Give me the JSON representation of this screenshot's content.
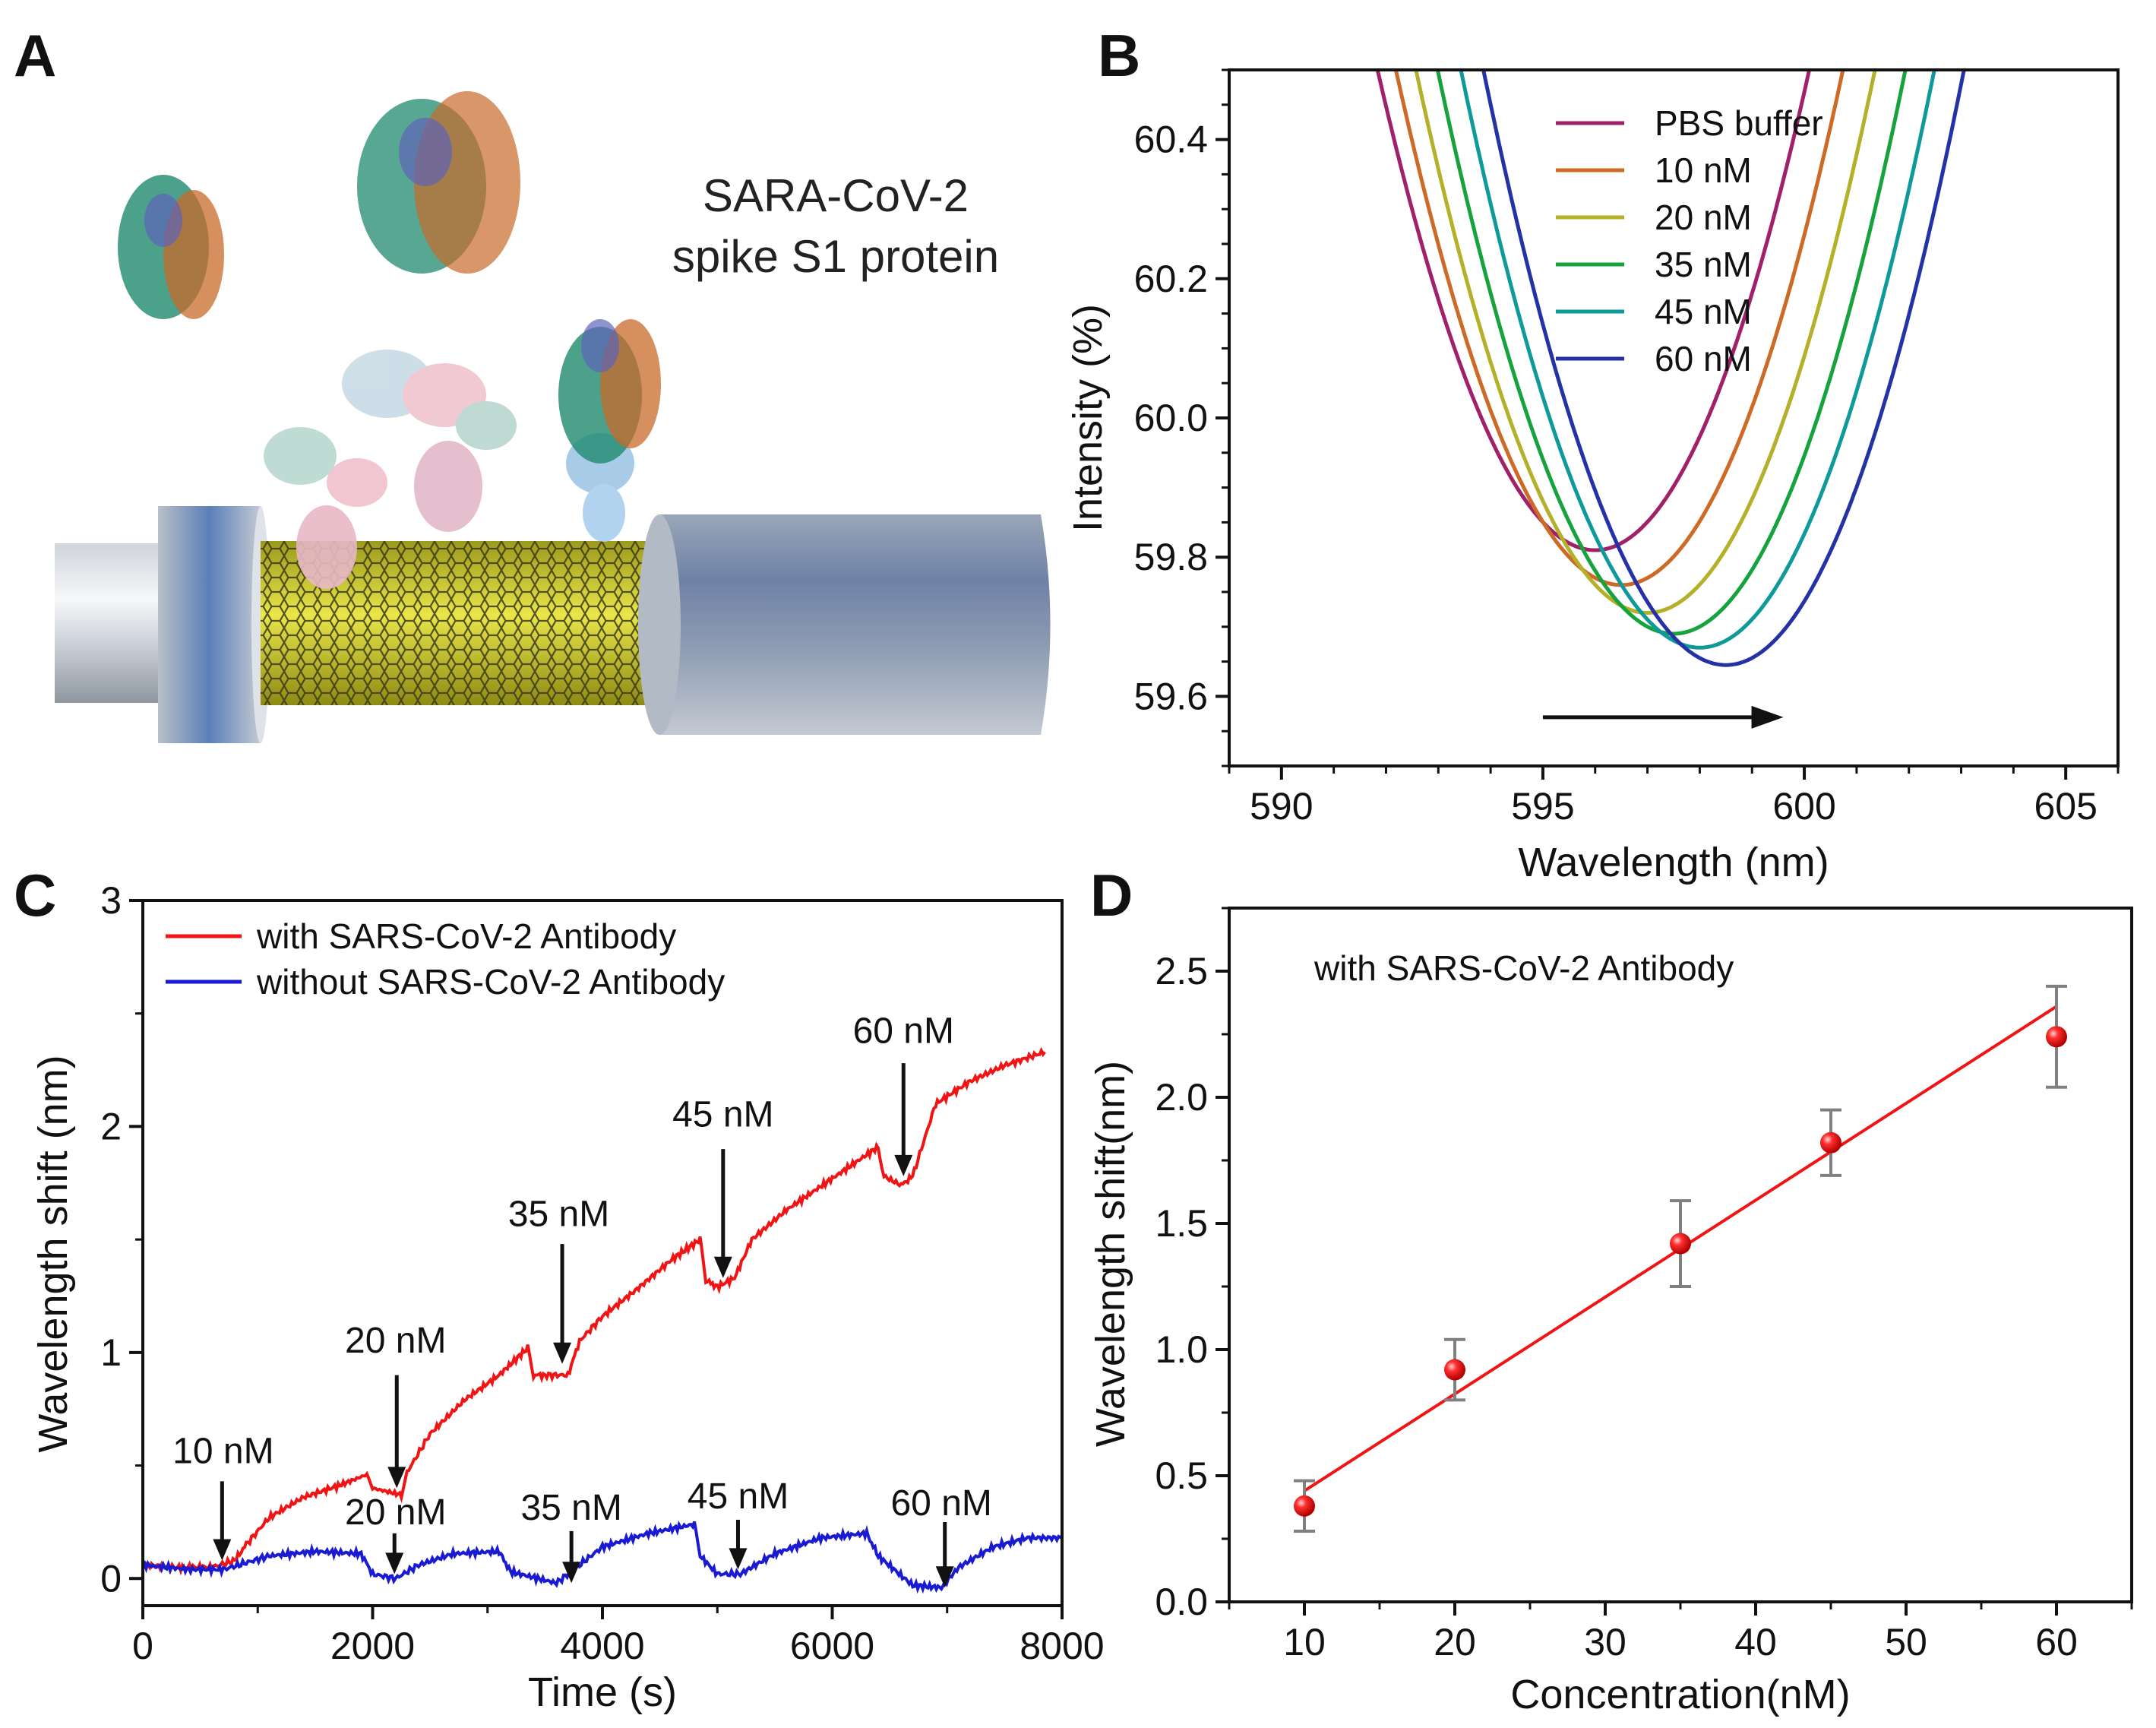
{
  "panel_a": {
    "letter": "A",
    "caption_line1": "SARA-CoV-2",
    "caption_line2": "spike S1 protein"
  },
  "chart_data": [
    {
      "panel": "B",
      "type": "line",
      "title": "",
      "xlabel": "Wavelength (nm)",
      "ylabel": "Intensity (%)",
      "xlim": [
        589,
        606
      ],
      "ylim": [
        59.5,
        60.5
      ],
      "xticks": [
        590,
        595,
        600,
        605
      ],
      "yticks": [
        59.6,
        59.8,
        60.0,
        60.2,
        60.4
      ],
      "legend": "top-center",
      "curves": [
        {
          "name": "PBS buffer",
          "color": "#a0206a",
          "min_x": 596.0,
          "min_y": 59.81
        },
        {
          "name": "10 nM",
          "color": "#cc6a26",
          "min_x": 596.5,
          "min_y": 59.76
        },
        {
          "name": "20 nM",
          "color": "#b4b02a",
          "min_x": 597.0,
          "min_y": 59.72
        },
        {
          "name": "35 nM",
          "color": "#16a23c",
          "min_x": 597.5,
          "min_y": 59.69
        },
        {
          "name": "45 nM",
          "color": "#0e9a9a",
          "min_x": 598.0,
          "min_y": 59.67
        },
        {
          "name": "60 nM",
          "color": "#2432a6",
          "min_x": 598.5,
          "min_y": 59.645
        }
      ],
      "arrow": {
        "x_start": 595.0,
        "x_end": 599.6,
        "y": 59.57
      }
    },
    {
      "panel": "C",
      "type": "line",
      "title": "",
      "xlabel": "Time (s)",
      "ylabel": "Wavelength shift (nm)",
      "xlim": [
        0,
        8000
      ],
      "ylim": [
        -0.12,
        3.0
      ],
      "xticks": [
        0,
        2000,
        4000,
        6000,
        8000
      ],
      "yticks": [
        0,
        1,
        2,
        3
      ],
      "legend": "top-left",
      "series": [
        {
          "name": "with SARS-CoV-2 Antibody",
          "color": "#f01414",
          "x": [
            0,
            300,
            600,
            800,
            900,
            1100,
            1400,
            1700,
            1950,
            2000,
            2250,
            2300,
            2500,
            2800,
            3100,
            3350,
            3400,
            3500,
            3700,
            3800,
            4000,
            4300,
            4600,
            4850,
            4900,
            5000,
            5150,
            5300,
            5600,
            6000,
            6400,
            6450,
            6600,
            6700,
            6900,
            7200,
            7500,
            7850
          ],
          "y": [
            0.06,
            0.05,
            0.05,
            0.08,
            0.15,
            0.27,
            0.36,
            0.41,
            0.46,
            0.4,
            0.37,
            0.47,
            0.64,
            0.79,
            0.9,
            1.02,
            0.9,
            0.9,
            0.9,
            1.05,
            1.16,
            1.28,
            1.41,
            1.5,
            1.32,
            1.29,
            1.33,
            1.5,
            1.63,
            1.77,
            1.91,
            1.78,
            1.74,
            1.78,
            2.1,
            2.2,
            2.27,
            2.33
          ]
        },
        {
          "name": "without SARS-CoV-2 Antibody",
          "color": "#1a1ad2",
          "x": [
            0,
            400,
            700,
            900,
            1100,
            1500,
            1900,
            2000,
            2200,
            2400,
            2700,
            3100,
            3200,
            3600,
            3800,
            4000,
            4400,
            4800,
            4850,
            5000,
            5200,
            5500,
            5900,
            6300,
            6400,
            6700,
            6950,
            7100,
            7400,
            7700,
            8000
          ],
          "y": [
            0.06,
            0.04,
            0.04,
            0.07,
            0.1,
            0.12,
            0.11,
            0.02,
            0.0,
            0.06,
            0.11,
            0.12,
            0.03,
            -0.02,
            0.06,
            0.14,
            0.2,
            0.24,
            0.1,
            0.02,
            0.02,
            0.11,
            0.18,
            0.2,
            0.1,
            -0.03,
            -0.04,
            0.05,
            0.14,
            0.18,
            0.18
          ]
        }
      ],
      "annotations": [
        {
          "text": "10 nM",
          "x": 690,
          "tip_y": 0.08,
          "tail_y": 0.43,
          "lx": 700,
          "ly": 0.51
        },
        {
          "text": "20 nM",
          "x": 2210,
          "tip_y": 0.4,
          "tail_y": 0.9,
          "lx": 2200,
          "ly": 1.0
        },
        {
          "text": "35 nM",
          "x": 3650,
          "tip_y": 0.95,
          "tail_y": 1.48,
          "lx": 3620,
          "ly": 1.56
        },
        {
          "text": "45 nM",
          "x": 5050,
          "tip_y": 1.33,
          "tail_y": 1.9,
          "lx": 5050,
          "ly": 2.0
        },
        {
          "text": "60 nM",
          "x": 6620,
          "tip_y": 1.78,
          "tail_y": 2.28,
          "lx": 6620,
          "ly": 2.37
        },
        {
          "text": "20 nM",
          "x": 2190,
          "tip_y": 0.02,
          "tail_y": 0.2,
          "lx": 2200,
          "ly": 0.24
        },
        {
          "text": "35 nM",
          "x": 3730,
          "tip_y": -0.02,
          "tail_y": 0.21,
          "lx": 3730,
          "ly": 0.26
        },
        {
          "text": "45 nM",
          "x": 5180,
          "tip_y": 0.04,
          "tail_y": 0.26,
          "lx": 5180,
          "ly": 0.31
        },
        {
          "text": "60 nM",
          "x": 6980,
          "tip_y": -0.04,
          "tail_y": 0.25,
          "lx": 6950,
          "ly": 0.28
        }
      ]
    },
    {
      "panel": "D",
      "type": "scatter",
      "title": "with SARS-CoV-2 Antibody",
      "xlabel": "Concentration(nM)",
      "ylabel": "Wavelength shift(nm)",
      "xlim": [
        5,
        65
      ],
      "ylim": [
        0,
        2.75
      ],
      "xticks": [
        10,
        20,
        30,
        40,
        50,
        60
      ],
      "yticks": [
        0.0,
        0.5,
        1.0,
        1.5,
        2.0,
        2.5
      ],
      "points": [
        {
          "x": 10,
          "y": 0.38,
          "err": 0.1
        },
        {
          "x": 20,
          "y": 0.92,
          "err": 0.12
        },
        {
          "x": 35,
          "y": 1.42,
          "err": 0.17
        },
        {
          "x": 45,
          "y": 1.82,
          "err": 0.13
        },
        {
          "x": 60,
          "y": 2.24,
          "err": 0.2
        }
      ],
      "fit_line": {
        "x": [
          10,
          60
        ],
        "y": [
          0.44,
          2.36
        ],
        "color": "#f01414"
      },
      "point_color": "#e81818",
      "errorbar_color": "#808080"
    }
  ]
}
